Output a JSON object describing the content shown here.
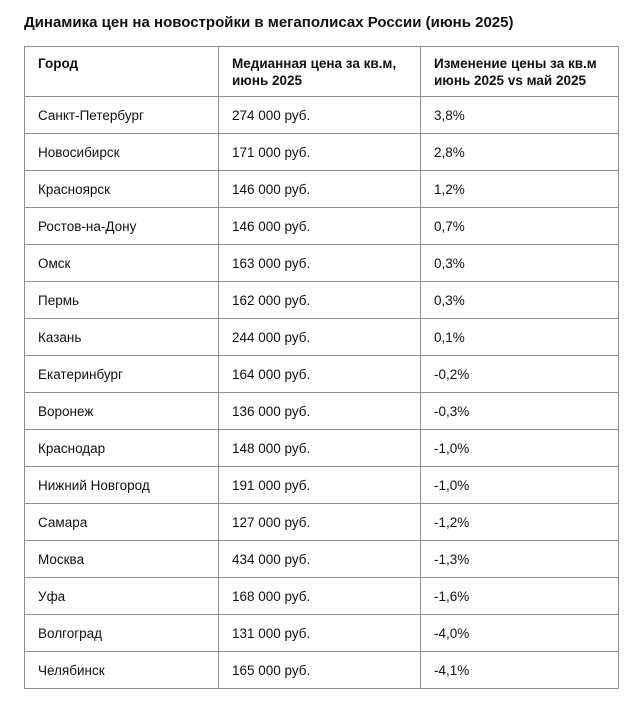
{
  "title": "Динамика цен на новостройки в мегаполисах России (июнь 2025)",
  "chart_data": {
    "type": "table",
    "title": "Динамика цен на новостройки в мегаполисах России (июнь 2025)",
    "columns": [
      "Город",
      "Медианная цена за кв.м, июнь 2025",
      "Изменение цены за кв.м июнь 2025 vs май 2025"
    ],
    "rows": [
      [
        "Санкт-Петербург",
        "274 000 руб.",
        "3,8%"
      ],
      [
        "Новосибирск",
        "171 000 руб.",
        "2,8%"
      ],
      [
        "Красноярск",
        "146 000 руб.",
        "1,2%"
      ],
      [
        "Ростов-на-Дону",
        "146 000 руб.",
        "0,7%"
      ],
      [
        "Омск",
        "163 000 руб.",
        "0,3%"
      ],
      [
        "Пермь",
        "162 000 руб.",
        "0,3%"
      ],
      [
        "Казань",
        "244 000 руб.",
        "0,1%"
      ],
      [
        "Екатеринбург",
        "164 000 руб.",
        "-0,2%"
      ],
      [
        "Воронеж",
        "136 000 руб.",
        "-0,3%"
      ],
      [
        "Краснодар",
        "148 000 руб.",
        "-1,0%"
      ],
      [
        "Нижний Новгород",
        "191 000 руб.",
        "-1,0%"
      ],
      [
        "Самара",
        "127 000 руб.",
        "-1,2%"
      ],
      [
        "Москва",
        "434 000 руб.",
        "-1,3%"
      ],
      [
        "Уфа",
        "168 000 руб.",
        "-1,6%"
      ],
      [
        "Волгоград",
        "131 000 руб.",
        "-4,0%"
      ],
      [
        "Челябинск",
        "165 000 руб.",
        "-4,1%"
      ]
    ],
    "units": {
      "price": "руб. за кв.м",
      "change": "%"
    },
    "period": "июнь 2025 vs май 2025"
  }
}
